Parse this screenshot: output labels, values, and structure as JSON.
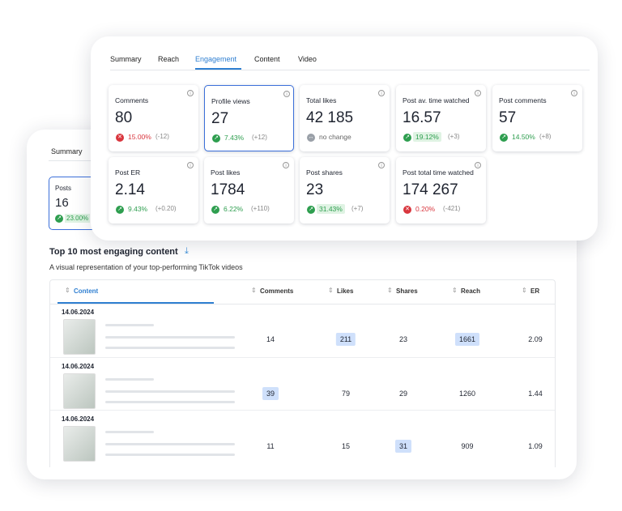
{
  "back": {
    "tab": "Summary",
    "posts": {
      "label": "Posts",
      "value": "16",
      "change": "23.00%"
    },
    "section": {
      "title": "Top 10 most engaging content",
      "subtitle": "A visual representation of your top-performing TikTok videos"
    },
    "table": {
      "columns": [
        "Content",
        "Comments",
        "Likes",
        "Shares",
        "Reach",
        "ER"
      ],
      "rows": [
        {
          "date": "14.06.2024",
          "cells": [
            "14",
            "211",
            "23",
            "1661",
            "2.09"
          ],
          "highlight": [
            1,
            3
          ]
        },
        {
          "date": "14.06.2024",
          "cells": [
            "39",
            "79",
            "29",
            "1260",
            "1.44"
          ],
          "highlight": [
            0
          ]
        },
        {
          "date": "14.06.2024",
          "cells": [
            "11",
            "15",
            "31",
            "909",
            "1.09"
          ],
          "highlight": [
            2
          ]
        }
      ]
    }
  },
  "front": {
    "tabs": [
      "Summary",
      "Reach",
      "Engagement",
      "Content",
      "Video"
    ],
    "active_tab": 2,
    "metrics": [
      {
        "label": "Comments",
        "value": "80",
        "change": "15.00%",
        "delta": "(-12)",
        "trend": "down"
      },
      {
        "label": "Profile views",
        "value": "27",
        "change": "7.43%",
        "delta": "(+12)",
        "trend": "up",
        "selected": true
      },
      {
        "label": "Total likes",
        "value": "42 185",
        "change": "no change",
        "trend": "flat"
      },
      {
        "label": "Post av. time watched",
        "value": "16.57",
        "change": "19.12%",
        "delta": "(+3)",
        "trend": "up",
        "highlight": true
      },
      {
        "label": "Post comments",
        "value": "57",
        "change": "14.50%",
        "delta": "(+8)",
        "trend": "up"
      },
      {
        "label": "Post ER",
        "value": "2.14",
        "change": "9.43%",
        "delta": "(+0.20)",
        "trend": "up"
      },
      {
        "label": "Post likes",
        "value": "1784",
        "change": "6.22%",
        "delta": "(+110)",
        "trend": "up"
      },
      {
        "label": "Post shares",
        "value": "23",
        "change": "31.43%",
        "delta": "(+7)",
        "trend": "up",
        "highlight": true
      },
      {
        "label": "Post total time watched",
        "value": "174 267",
        "change": "0.20%",
        "delta": "(-421)",
        "trend": "down"
      }
    ]
  }
}
